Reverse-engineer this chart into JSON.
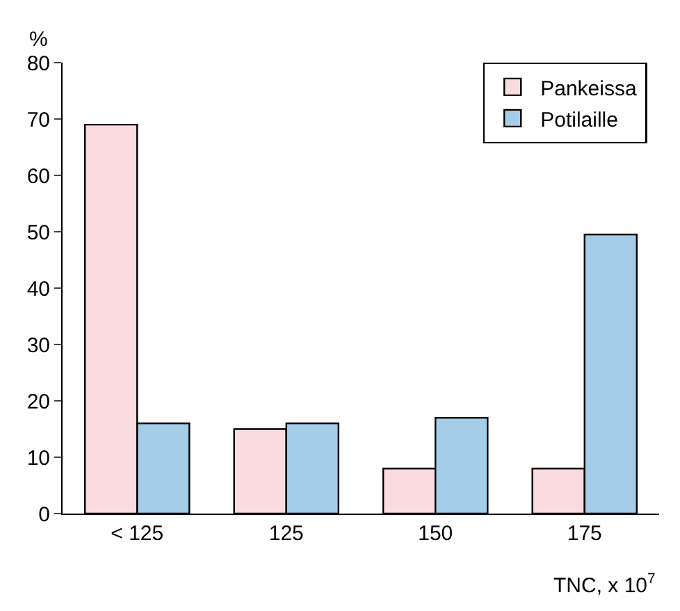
{
  "chart_data": {
    "type": "bar",
    "categories": [
      "< 125",
      "125",
      "150",
      "175"
    ],
    "series": [
      {
        "name": "Pankeissa",
        "color": "#fadbe0",
        "values": [
          69,
          15,
          8,
          8
        ]
      },
      {
        "name": "Potilaille",
        "color": "#a5cde9",
        "values": [
          16,
          16,
          17,
          49.5
        ]
      }
    ],
    "ylabel": "%",
    "xlabel": "TNC, x 10$^{7}$",
    "ylim": [
      0,
      80
    ],
    "yticks": [
      0,
      10,
      20,
      30,
      40,
      50,
      60,
      70,
      80
    ],
    "legend": "top right"
  }
}
